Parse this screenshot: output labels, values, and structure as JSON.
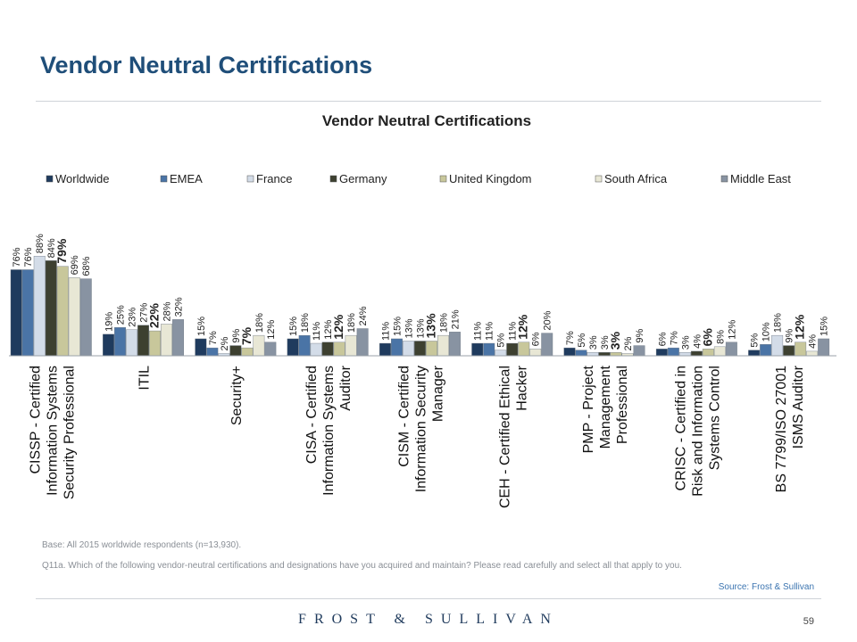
{
  "slide": {
    "title": "Vendor Neutral Certifications",
    "base_note": "Base: All 2015 worldwide respondents (n=13,930).",
    "question_note": "Q11a. Which of the following vendor-neutral certifications and designations have you acquired and maintain? Please read carefully and select all that apply to you.",
    "source": "Source: Frost & Sullivan",
    "brand": "FROST & SULLIVAN",
    "page_number": "59"
  },
  "chart_data": {
    "type": "bar",
    "title": "Vendor Neutral Certifications",
    "legend_position": "top",
    "grid": false,
    "ylim": [
      0,
      100
    ],
    "value_suffix": "%",
    "categories": [
      "CISSP - Certified Information Systems Security Professional",
      "ITIL",
      "Security+",
      "CISA - Certified Information Systems Auditor",
      "CISM - Certified Information Security Manager",
      "CEH - Certified Ethical Hacker",
      "PMP - Project Management Professional",
      "CRISC - Certified in Risk and Information Systems Control",
      "BS 7799/ISO 27001 ISMS Auditor"
    ],
    "category_lines": [
      [
        "CISSP - Certified",
        "Information Systems",
        "Security Professional"
      ],
      [
        "ITIL"
      ],
      [
        "Security+"
      ],
      [
        "CISA - Certified",
        "Information Systems",
        "Auditor"
      ],
      [
        "CISM - Certified",
        "Information Security",
        "Manager"
      ],
      [
        "CEH - Certified Ethical",
        "Hacker"
      ],
      [
        "PMP - Project",
        "Management",
        "Professional"
      ],
      [
        "CRISC - Certified in",
        "Risk and Information",
        "Systems Control"
      ],
      [
        "BS 7799/ISO 27001",
        "ISMS Auditor"
      ]
    ],
    "highlight_series": "United Kingdom",
    "series": [
      {
        "name": "Worldwide",
        "color": "#1f3b5e",
        "values": [
          76,
          19,
          15,
          15,
          11,
          11,
          7,
          6,
          5
        ]
      },
      {
        "name": "EMEA",
        "color": "#4a74a6",
        "values": [
          76,
          25,
          7,
          18,
          15,
          11,
          5,
          7,
          10
        ]
      },
      {
        "name": "France",
        "color": "#d3dce8",
        "values": [
          88,
          23,
          2,
          11,
          13,
          5,
          3,
          3,
          18
        ]
      },
      {
        "name": "Germany",
        "color": "#3d4030",
        "values": [
          84,
          27,
          9,
          12,
          13,
          11,
          3,
          4,
          9
        ]
      },
      {
        "name": "United Kingdom",
        "color": "#c8c79b",
        "values": [
          79,
          22,
          7,
          12,
          13,
          12,
          3,
          6,
          12
        ]
      },
      {
        "name": "South Africa",
        "color": "#e8e7d5",
        "values": [
          69,
          28,
          18,
          18,
          18,
          6,
          2,
          8,
          4
        ]
      },
      {
        "name": "Middle East",
        "color": "#8893a2",
        "values": [
          68,
          32,
          12,
          24,
          21,
          20,
          9,
          12,
          15
        ]
      }
    ]
  }
}
